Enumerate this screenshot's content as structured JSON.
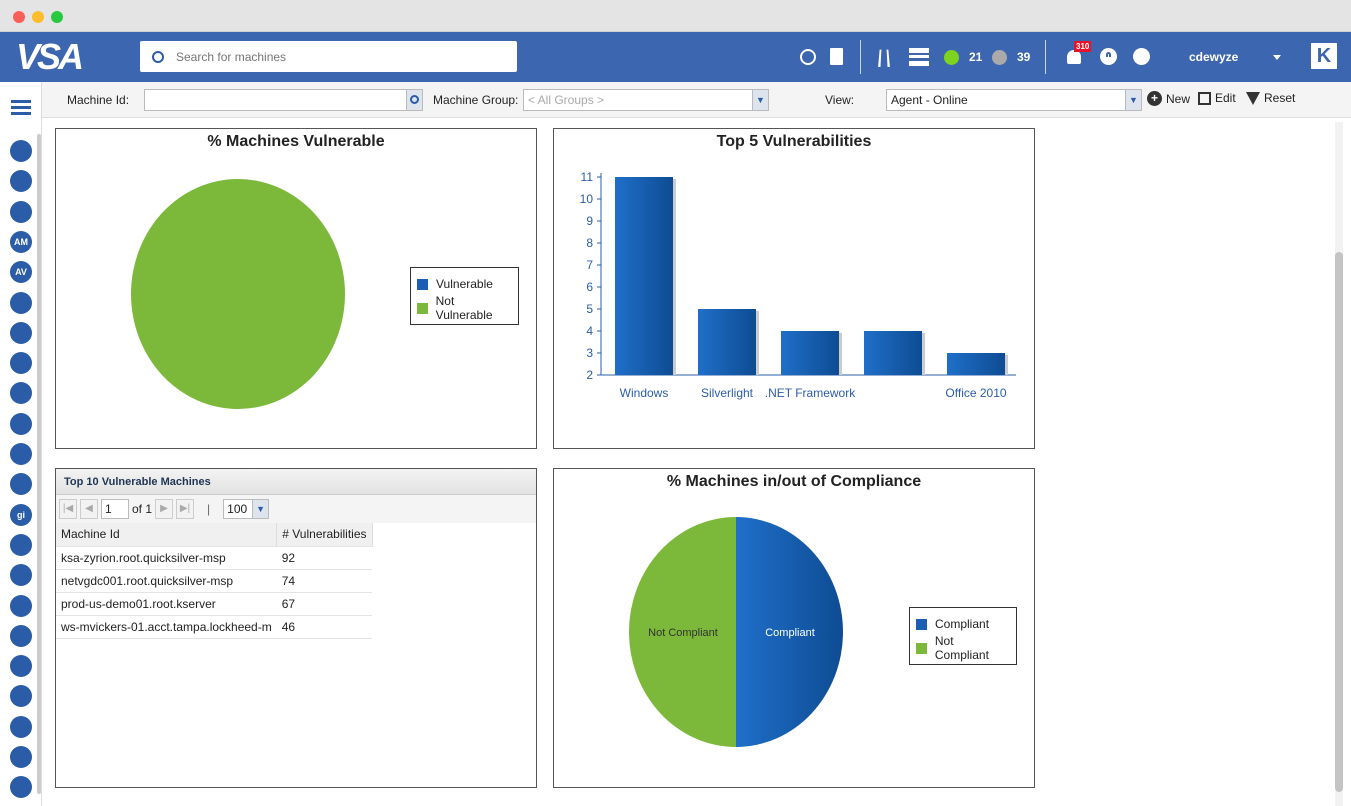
{
  "header": {
    "logo": "VSA",
    "search_placeholder": "Search for machines",
    "online_count": "21",
    "offline_count": "39",
    "notification_count": "310",
    "username": "cdewyze",
    "brand_logo": "K"
  },
  "filters": {
    "machine_id_label": "Machine Id:",
    "machine_id_value": "",
    "machine_group_label": "Machine Group:",
    "machine_group_value": "< All Groups >",
    "view_label": "View:",
    "view_value": "Agent - Online",
    "new_label": "New",
    "edit_label": "Edit",
    "reset_label": "Reset"
  },
  "sidebar": {
    "icons": [
      "gear-cloud",
      "network",
      "network-2",
      "AM",
      "AV",
      "report",
      "shield",
      "backup",
      "cloud",
      "database",
      "remote",
      "radar",
      "gi",
      "info",
      "mobile",
      "monitor",
      "antenna",
      "patch",
      "security",
      "wand",
      "lock",
      "dollar"
    ]
  },
  "colors": {
    "vulnerable": "#1a5fb4",
    "not_vulnerable": "#7cb83a",
    "header": "#3d66b0"
  },
  "chart_data": [
    {
      "type": "pie",
      "title": "% Machines Vulnerable",
      "legend_position": "right",
      "slices": [
        {
          "name": "Vulnerable",
          "value": 0
        },
        {
          "name": "Not Vulnerable",
          "value": 100
        }
      ]
    },
    {
      "type": "bar",
      "title": "Top 5 Vulnerabilities",
      "categories": [
        "Windows",
        "Silverlight",
        ".NET Framework",
        "",
        "Office 2010"
      ],
      "values": [
        11,
        5,
        4,
        4,
        3
      ],
      "ylim": [
        2,
        11
      ],
      "yticks": [
        "2",
        "3",
        "4",
        "5",
        "6",
        "7",
        "8",
        "9",
        "10",
        "11"
      ]
    },
    {
      "type": "pie",
      "title": "% Machines in/out of Compliance",
      "legend_position": "right",
      "slices": [
        {
          "name": "Compliant",
          "value": 50
        },
        {
          "name": "Not Compliant",
          "value": 50
        }
      ]
    }
  ],
  "table": {
    "title": "Top 10 Vulnerable Machines",
    "page": "1",
    "of_label": "of 1",
    "page_size": "100",
    "columns": [
      "Machine Id",
      "# Vulnerabilities"
    ],
    "rows": [
      [
        "ksa-zyrion.root.quicksilver-msp",
        "92"
      ],
      [
        "netvgdc001.root.quicksilver-msp",
        "74"
      ],
      [
        "prod-us-demo01.root.kserver",
        "67"
      ],
      [
        "ws-mvickers-01.acct.tampa.lockheed-m",
        "46"
      ]
    ]
  }
}
